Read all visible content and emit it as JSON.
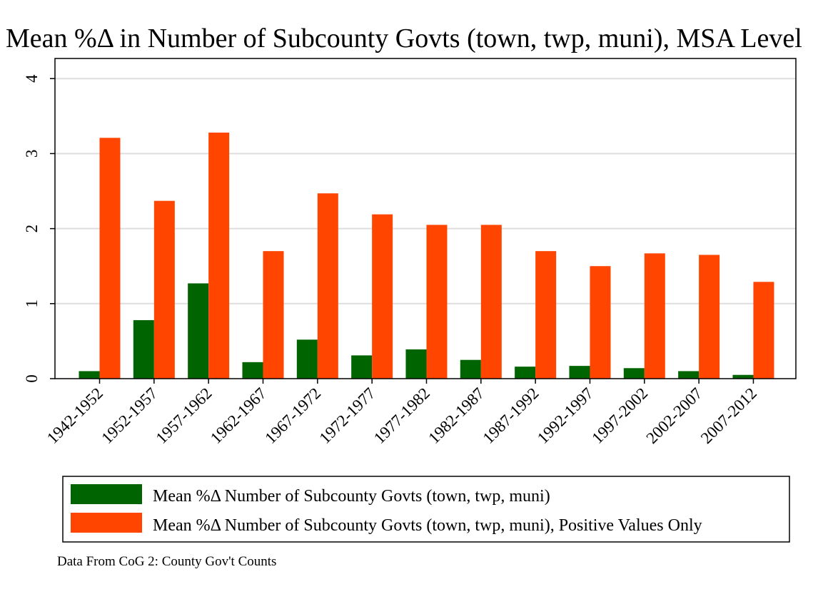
{
  "chart_data": {
    "type": "bar",
    "title": "Mean %Δ in Number of Subcounty Govts (town, twp, muni), MSA Level",
    "xlabel": "",
    "ylabel": "",
    "ylim": [
      0,
      4.25
    ],
    "yticks": [
      0,
      1,
      2,
      3,
      4
    ],
    "grid": true,
    "legend_position": "bottom",
    "categories": [
      "1942-1952",
      "1952-1957",
      "1957-1962",
      "1962-1967",
      "1967-1972",
      "1972-1977",
      "1977-1982",
      "1982-1987",
      "1987-1992",
      "1992-1997",
      "1997-2002",
      "2002-2007",
      "2007-2012"
    ],
    "series": [
      {
        "name": "Mean %Δ Number of Subcounty Govts (town, twp, muni)",
        "color": "#006400",
        "values": [
          0.1,
          0.78,
          1.27,
          0.22,
          0.52,
          0.31,
          0.39,
          0.25,
          0.16,
          0.17,
          0.14,
          0.1,
          0.05
        ]
      },
      {
        "name": "Mean %Δ Number of Subcounty Govts (town, twp, muni), Positive Values Only",
        "color": "#ff4500",
        "values": [
          3.21,
          2.37,
          3.28,
          1.7,
          2.47,
          2.19,
          2.05,
          2.05,
          1.7,
          1.5,
          1.67,
          1.65,
          1.29
        ]
      }
    ],
    "note": "Data From CoG 2: County Gov't Counts"
  }
}
